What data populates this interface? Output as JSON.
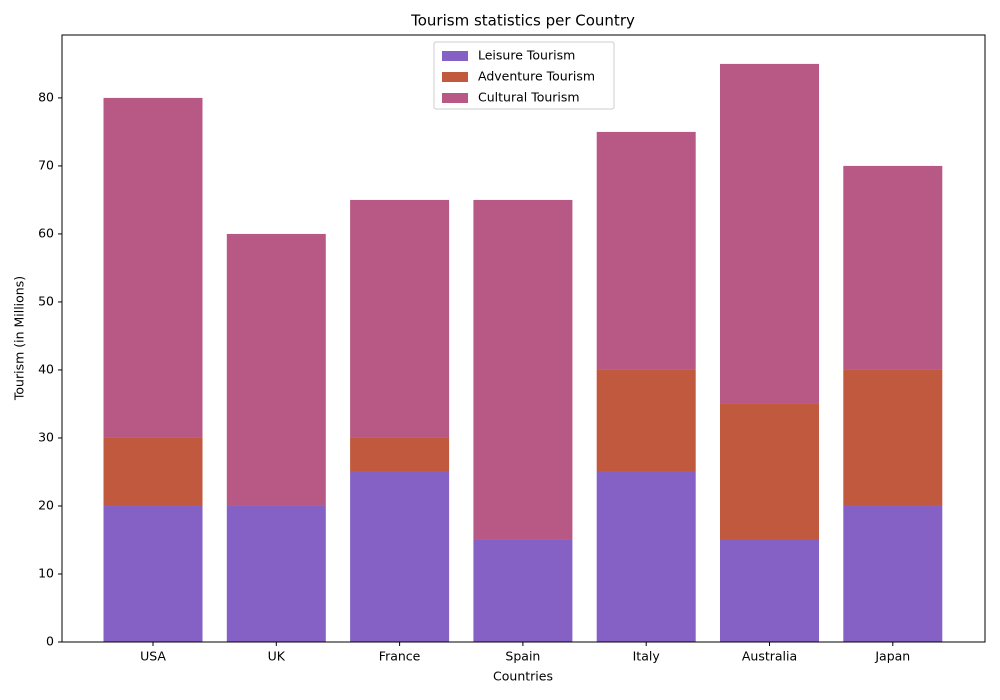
{
  "chart_data": {
    "type": "stacked_bar",
    "title": "Tourism statistics per Country",
    "x_label": "Countries",
    "y_label": "Tourism (in Millions)",
    "categories": [
      "USA",
      "UK",
      "France",
      "Spain",
      "Italy",
      "Australia",
      "Japan"
    ],
    "series": [
      {
        "name": "Leisure Tourism",
        "color": "#8561c5",
        "values": [
          20,
          20,
          25,
          15,
          25,
          15,
          20
        ]
      },
      {
        "name": "Adventure Tourism",
        "color": "#c1593e",
        "values": [
          10,
          0,
          5,
          0,
          15,
          20,
          20
        ]
      },
      {
        "name": "Cultural Tourism",
        "color": "#b85985",
        "values": [
          50,
          40,
          35,
          50,
          35,
          50,
          30
        ]
      }
    ],
    "ylim": [
      0,
      89.25
    ],
    "yticks": [
      0,
      10,
      20,
      30,
      40,
      50,
      60,
      70,
      80
    ],
    "legend": "upper center"
  }
}
